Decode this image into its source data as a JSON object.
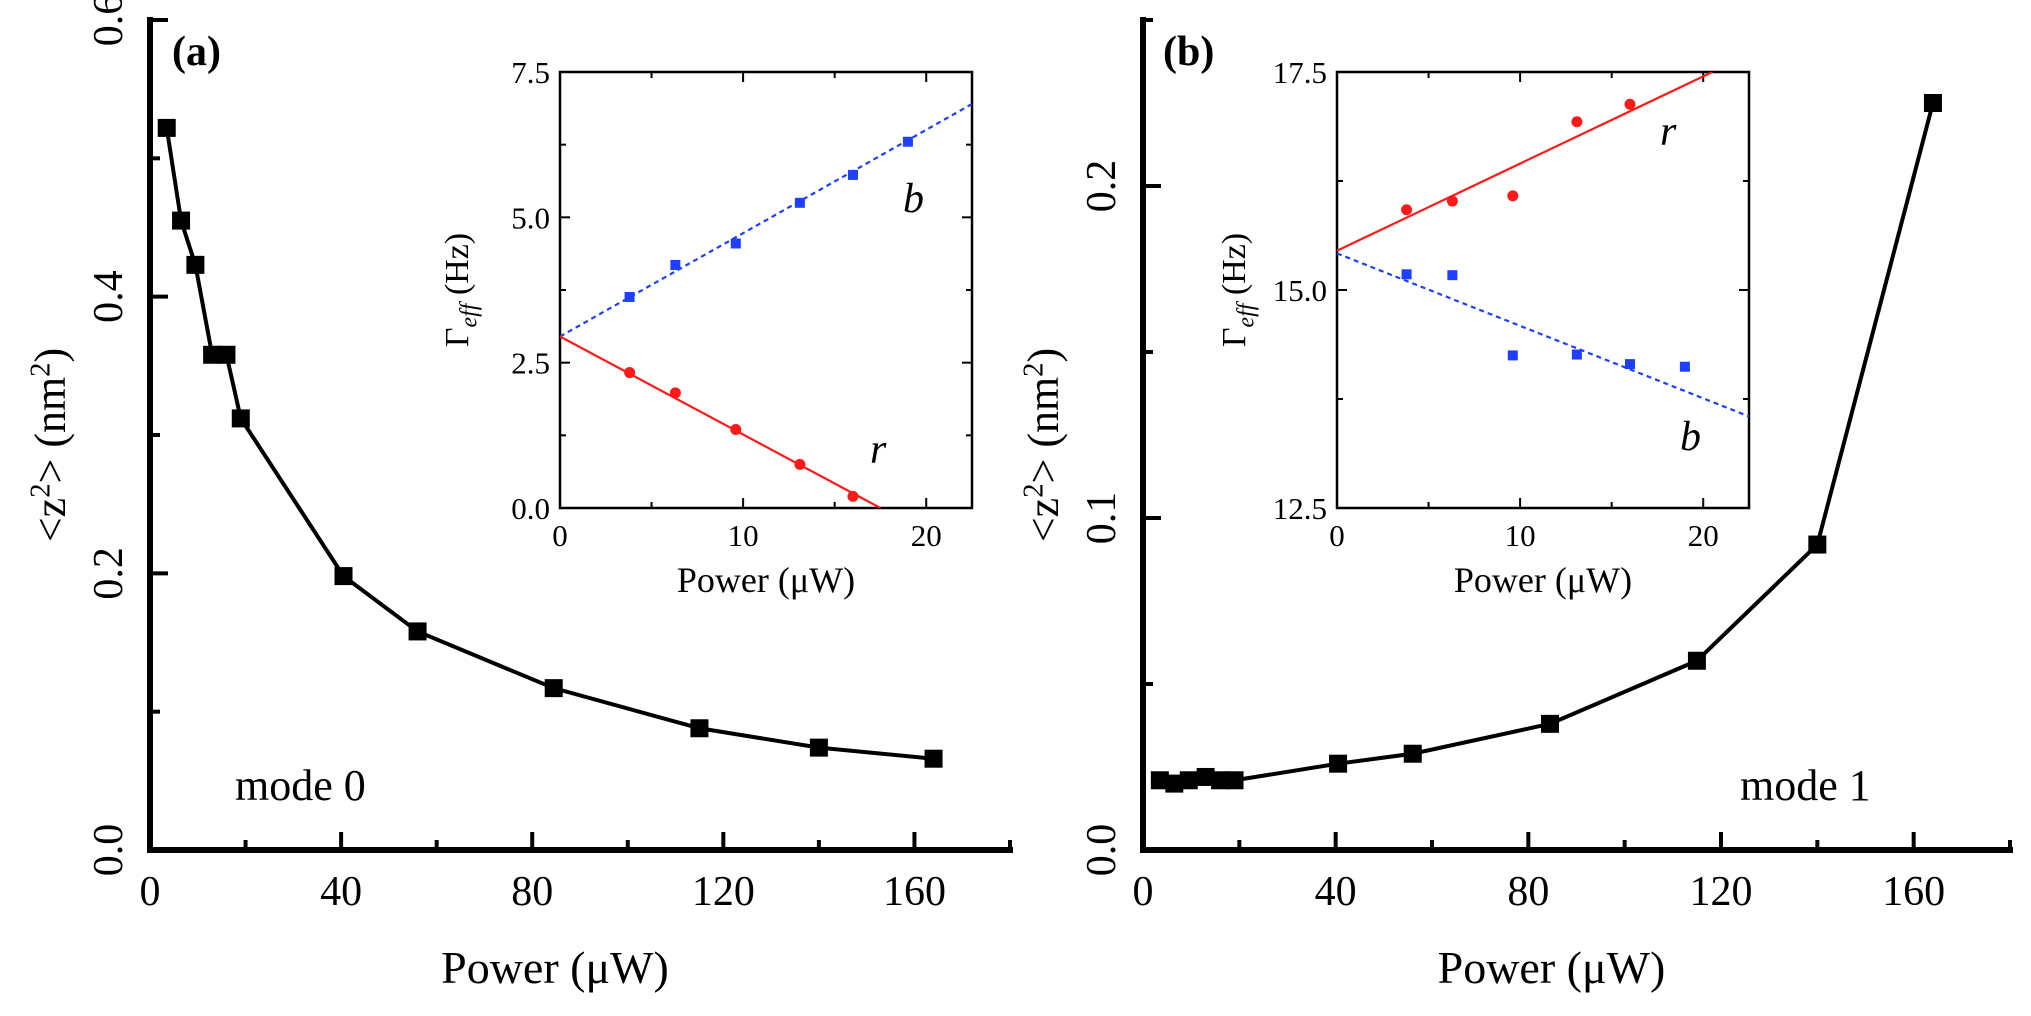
{
  "chart_data": [
    {
      "panel": "(a)",
      "type": "line",
      "xlabel": "Power (μW)",
      "ylabel": "<z²> (nm²)",
      "xlim": [
        0,
        180
      ],
      "ylim": [
        0,
        0.6
      ],
      "xticks": [
        0,
        40,
        80,
        120,
        160
      ],
      "xtick_labels": [
        "0",
        "40",
        "80",
        "120",
        "160"
      ],
      "yticks": [
        0,
        0.2,
        0.4,
        0.6
      ],
      "ytick_labels": [
        "0.0",
        "0.2",
        "0.4",
        "0.6"
      ],
      "annotation": "mode 0",
      "series": [
        {
          "marker": "square",
          "x": [
            3.5,
            6.5,
            9.5,
            13,
            16,
            19,
            40.5,
            56,
            84.5,
            115,
            140,
            164
          ],
          "y": [
            0.522,
            0.455,
            0.423,
            0.358,
            0.358,
            0.312,
            0.198,
            0.158,
            0.117,
            0.088,
            0.074,
            0.066
          ]
        }
      ],
      "inset": {
        "type": "scatter",
        "xlabel": "Power (μW)",
        "ylabel": "Γeff (Hz)",
        "xlim": [
          0,
          22.5
        ],
        "ylim": [
          0,
          7.5
        ],
        "xticks": [
          0,
          10,
          20
        ],
        "xtick_labels": [
          "0",
          "10",
          "20"
        ],
        "yticks": [
          0,
          2.5,
          5.0,
          7.5
        ],
        "ytick_labels": [
          "0.0",
          "2.5",
          "5.0",
          "7.5"
        ],
        "series": [
          {
            "label": "b",
            "color": "#1f3fff",
            "marker": "square",
            "x": [
              3.8,
              6.3,
              9.6,
              13.1,
              16.0,
              19.0
            ],
            "y": [
              3.63,
              4.18,
              4.55,
              5.25,
              5.73,
              6.3
            ],
            "fit": {
              "style": "dotted",
              "x": [
                0,
                22.5
              ],
              "y": [
                2.95,
                6.95
              ]
            }
          },
          {
            "label": "r",
            "color": "#ff1a1a",
            "marker": "circle",
            "x": [
              3.8,
              6.3,
              9.6,
              13.1,
              16.0
            ],
            "y": [
              2.33,
              1.98,
              1.35,
              0.75,
              0.2
            ],
            "fit": {
              "style": "solid",
              "x": [
                0,
                17.5
              ],
              "y": [
                2.95,
                0
              ]
            }
          }
        ]
      }
    },
    {
      "panel": "(b)",
      "type": "line",
      "xlabel": "Power (μW)",
      "ylabel": "<z²> (nm²)",
      "xlim": [
        0,
        180
      ],
      "ylim": [
        0,
        0.25
      ],
      "xticks": [
        0,
        40,
        80,
        120,
        160
      ],
      "xtick_labels": [
        "0",
        "40",
        "80",
        "120",
        "160"
      ],
      "yticks": [
        0,
        0.1,
        0.2
      ],
      "ytick_labels": [
        "0.0",
        "0.1",
        "0.2"
      ],
      "annotation": "mode 1",
      "series": [
        {
          "marker": "square",
          "x": [
            3.5,
            6.5,
            9.5,
            13,
            16,
            19,
            40.5,
            56,
            84.5,
            115,
            140,
            164
          ],
          "y": [
            0.021,
            0.02,
            0.021,
            0.022,
            0.021,
            0.021,
            0.026,
            0.029,
            0.038,
            0.057,
            0.092,
            0.225
          ]
        }
      ],
      "inset": {
        "type": "scatter",
        "xlabel": "Power (μW)",
        "ylabel": "Γeff (Hz)",
        "xlim": [
          0,
          22.5
        ],
        "ylim": [
          12.5,
          17.5
        ],
        "xticks": [
          0,
          10,
          20
        ],
        "xtick_labels": [
          "0",
          "10",
          "20"
        ],
        "yticks": [
          12.5,
          15.0,
          17.5
        ],
        "ytick_labels": [
          "12.5",
          "15.0",
          "17.5"
        ],
        "series": [
          {
            "label": "r",
            "color": "#ff1a1a",
            "marker": "circle",
            "x": [
              3.8,
              6.3,
              9.6,
              13.1,
              16.0
            ],
            "y": [
              15.92,
              16.02,
              16.08,
              16.93,
              17.13
            ],
            "fit": {
              "style": "solid",
              "x": [
                0,
                20.5
              ],
              "y": [
                15.45,
                17.5
              ]
            }
          },
          {
            "label": "b",
            "color": "#1f3fff",
            "marker": "square",
            "x": [
              3.8,
              6.3,
              9.6,
              13.1,
              16.0,
              19.0
            ],
            "y": [
              15.18,
              15.17,
              14.25,
              14.26,
              14.15,
              14.12
            ],
            "fit": {
              "style": "dotted",
              "x": [
                0,
                22.5
              ],
              "y": [
                15.42,
                13.55
              ]
            }
          }
        ]
      }
    }
  ]
}
